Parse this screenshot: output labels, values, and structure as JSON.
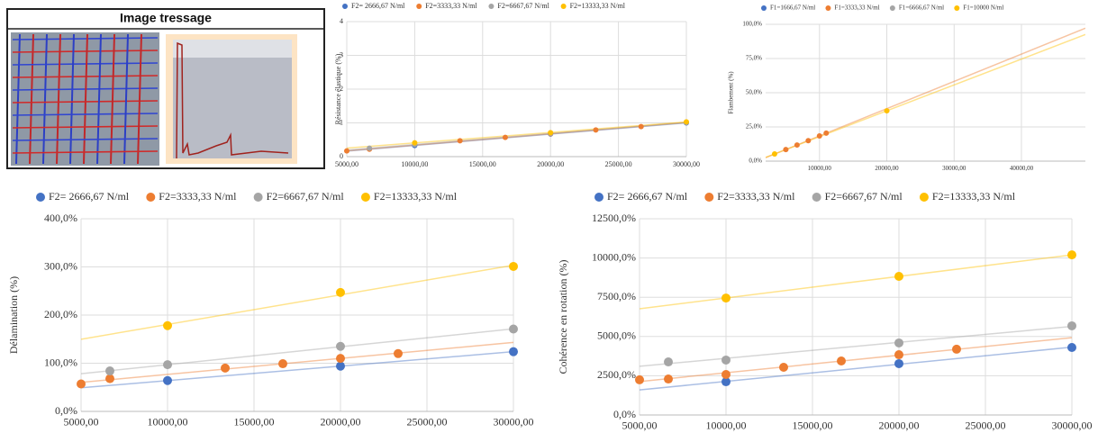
{
  "image_panel": {
    "title": "Image tressage"
  },
  "chart_data": [
    {
      "type": "scatter",
      "y_label": "Résistance élastique (%)",
      "grid": true,
      "trendline": true,
      "legend": "top",
      "xlim": [
        5000,
        30000
      ],
      "ylim": [
        0,
        4
      ],
      "xticks": [
        {
          "value": 5000,
          "label": "5000,00"
        },
        {
          "value": 10000,
          "label": "10000,00"
        },
        {
          "value": 15000,
          "label": "15000,00"
        },
        {
          "value": 20000,
          "label": "20000,00"
        },
        {
          "value": 25000,
          "label": "25000,00"
        },
        {
          "value": 30000,
          "label": "30000,00"
        }
      ],
      "yticks": [
        0,
        1,
        2,
        3,
        4
      ],
      "series": [
        {
          "name": "F2= 2666,67 N/ml",
          "color": "#4472c4",
          "x": [
            10000,
            20000,
            30000
          ],
          "values": [
            0.33,
            0.67,
            1.0
          ]
        },
        {
          "name": "F2=3333,33 N/ml",
          "color": "#ed7d31",
          "x": [
            5000,
            6667,
            13333,
            16667,
            20000,
            23333,
            26667
          ],
          "values": [
            0.17,
            0.22,
            0.47,
            0.57,
            0.68,
            0.79,
            0.89
          ]
        },
        {
          "name": "F2=6667,67 N/ml",
          "color": "#a5a5a5",
          "x": [
            6667,
            10000,
            20000,
            30000
          ],
          "values": [
            0.25,
            0.36,
            0.69,
            1.01
          ]
        },
        {
          "name": "F2=13333,33 N/ml",
          "color": "#ffc000",
          "x": [
            10000,
            20000,
            30000
          ],
          "values": [
            0.41,
            0.71,
            1.03
          ]
        }
      ]
    },
    {
      "type": "scatter",
      "y_label": "Flambement (%)",
      "grid": true,
      "trendline": true,
      "legend": "top",
      "xlim": [
        2000,
        49500
      ],
      "ylim": [
        0,
        100
      ],
      "xticks": [
        {
          "value": 10000,
          "label": "10000,00"
        },
        {
          "value": 20000,
          "label": "20000,00"
        },
        {
          "value": 30000,
          "label": "30000,00"
        },
        {
          "value": 40000,
          "label": "40000,00"
        }
      ],
      "yticks": [
        {
          "value": 0,
          "label": "0,0%"
        },
        {
          "value": 25,
          "label": "25,0%"
        },
        {
          "value": 50,
          "label": "50,0%"
        },
        {
          "value": 75,
          "label": "75,0%"
        },
        {
          "value": 100,
          "label": "100,0%"
        }
      ],
      "series": [
        {
          "name": "F1=1666,67 N/ml",
          "color": "#4472c4",
          "x": [],
          "values": []
        },
        {
          "name": "F1=3333,33 N/ml",
          "color": "#ed7d31",
          "x": [
            5000,
            6667,
            8333,
            10000,
            11000
          ],
          "values": [
            8.5,
            11.8,
            15,
            18.4,
            20.5
          ]
        },
        {
          "name": "F1=6666,67 N/ml",
          "color": "#a5a5a5",
          "x": [],
          "values": []
        },
        {
          "name": "F1=10000 N/ml",
          "color": "#ffc000",
          "x": [
            3333,
            20000
          ],
          "values": [
            5.3,
            36.8
          ]
        }
      ]
    },
    {
      "type": "scatter",
      "y_label": "Délamination (%)",
      "grid": true,
      "trendline": true,
      "legend": "top",
      "xlim": [
        5000,
        30000
      ],
      "ylim": [
        0,
        400
      ],
      "xticks": [
        {
          "value": 5000,
          "label": "5000,00"
        },
        {
          "value": 10000,
          "label": "10000,00"
        },
        {
          "value": 15000,
          "label": "15000,00"
        },
        {
          "value": 20000,
          "label": "20000,00"
        },
        {
          "value": 25000,
          "label": "25000,00"
        },
        {
          "value": 30000,
          "label": "30000,00"
        }
      ],
      "yticks": [
        {
          "value": 0,
          "label": "0,0%"
        },
        {
          "value": 100,
          "label": "100,0%"
        },
        {
          "value": 200,
          "label": "200,0%"
        },
        {
          "value": 300,
          "label": "300,0%"
        },
        {
          "value": 400,
          "label": "400,0%"
        }
      ],
      "series": [
        {
          "name": "F2= 2666,67 N/ml",
          "color": "#4472c4",
          "x": [
            10000,
            20000,
            30000
          ],
          "values": [
            64,
            94,
            124
          ]
        },
        {
          "name": "F2=3333,33 N/ml",
          "color": "#ed7d31",
          "x": [
            5000,
            6667,
            13333,
            16667,
            20000,
            23333
          ],
          "values": [
            57,
            68,
            90,
            99,
            110,
            120
          ]
        },
        {
          "name": "F2=6667,67 N/ml",
          "color": "#a5a5a5",
          "x": [
            6667,
            10000,
            20000,
            30000
          ],
          "values": [
            84,
            97,
            135,
            171
          ]
        },
        {
          "name": "F2=13333,33 N/ml",
          "color": "#ffc000",
          "x": [
            10000,
            20000,
            30000
          ],
          "values": [
            178,
            247,
            301
          ]
        }
      ]
    },
    {
      "type": "scatter",
      "y_label": "Cohérence en rotation (%)",
      "grid": true,
      "trendline": true,
      "legend": "top",
      "xlim": [
        5000,
        30000
      ],
      "ylim": [
        0,
        12500
      ],
      "xticks": [
        {
          "value": 5000,
          "label": "5000,00"
        },
        {
          "value": 10000,
          "label": "10000,00"
        },
        {
          "value": 15000,
          "label": "15000,00"
        },
        {
          "value": 20000,
          "label": "20000,00"
        },
        {
          "value": 25000,
          "label": "25000,00"
        },
        {
          "value": 30000,
          "label": "30000,00"
        }
      ],
      "yticks": [
        {
          "value": 0,
          "label": "0,0%"
        },
        {
          "value": 2500,
          "label": "2500,0%"
        },
        {
          "value": 5000,
          "label": "5000,0%"
        },
        {
          "value": 7500,
          "label": "7500,0%"
        },
        {
          "value": 10000,
          "label": "10000,0%"
        },
        {
          "value": 12500,
          "label": "12500,0%"
        }
      ],
      "series": [
        {
          "name": "F2= 2666,67 N/ml",
          "color": "#4472c4",
          "x": [
            10000,
            20000,
            30000
          ],
          "values": [
            2120,
            3270,
            4300
          ]
        },
        {
          "name": "F2=3333,33 N/ml",
          "color": "#ed7d31",
          "x": [
            5000,
            6667,
            10000,
            13333,
            16667,
            20000,
            23333
          ],
          "values": [
            2240,
            2290,
            2580,
            3040,
            3440,
            3840,
            4190
          ]
        },
        {
          "name": "F2=6667,67 N/ml",
          "color": "#a5a5a5",
          "x": [
            6667,
            10000,
            20000,
            30000
          ],
          "values": [
            3380,
            3500,
            4590,
            5680
          ]
        },
        {
          "name": "F2=13333,33 N/ml",
          "color": "#ffc000",
          "x": [
            10000,
            20000,
            30000
          ],
          "values": [
            7450,
            8830,
            10200
          ]
        }
      ]
    }
  ]
}
